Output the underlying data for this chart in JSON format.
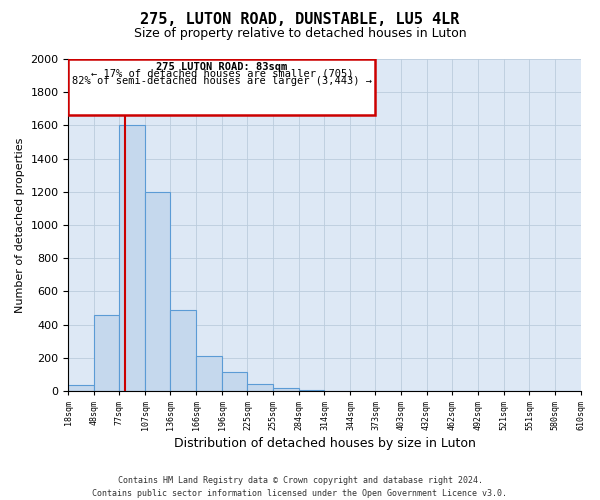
{
  "title": "275, LUTON ROAD, DUNSTABLE, LU5 4LR",
  "subtitle": "Size of property relative to detached houses in Luton",
  "xlabel": "Distribution of detached houses by size in Luton",
  "ylabel": "Number of detached properties",
  "bin_edges": [
    18,
    48,
    77,
    107,
    136,
    166,
    196,
    225,
    255,
    284,
    314,
    344,
    373,
    403,
    432,
    462,
    492,
    521,
    551,
    580,
    610
  ],
  "bar_heights": [
    35,
    460,
    1600,
    1200,
    490,
    210,
    115,
    45,
    18,
    5,
    0,
    0,
    0,
    0,
    0,
    0,
    0,
    0,
    0,
    0
  ],
  "bar_color": "#c5d8ed",
  "bar_edge_color": "#5b9bd5",
  "property_line_x": 83,
  "property_line_color": "#cc0000",
  "annotation_title": "275 LUTON ROAD: 83sqm",
  "annotation_line1": "← 17% of detached houses are smaller (705)",
  "annotation_line2": "82% of semi-detached houses are larger (3,443) →",
  "annotation_box_edgecolor": "#cc0000",
  "annotation_box_facecolor": "#ffffff",
  "ylim": [
    0,
    2000
  ],
  "ytick_step": 200,
  "background_color": "#ffffff",
  "ax_facecolor": "#dde8f5",
  "grid_color": "#bbccdd",
  "footer_line1": "Contains HM Land Registry data © Crown copyright and database right 2024.",
  "footer_line2": "Contains public sector information licensed under the Open Government Licence v3.0.",
  "title_fontsize": 11,
  "subtitle_fontsize": 9,
  "xlabel_fontsize": 9,
  "ylabel_fontsize": 8,
  "xtick_fontsize": 6,
  "ytick_fontsize": 8,
  "annotation_fontsize": 7.5,
  "footer_fontsize": 6
}
